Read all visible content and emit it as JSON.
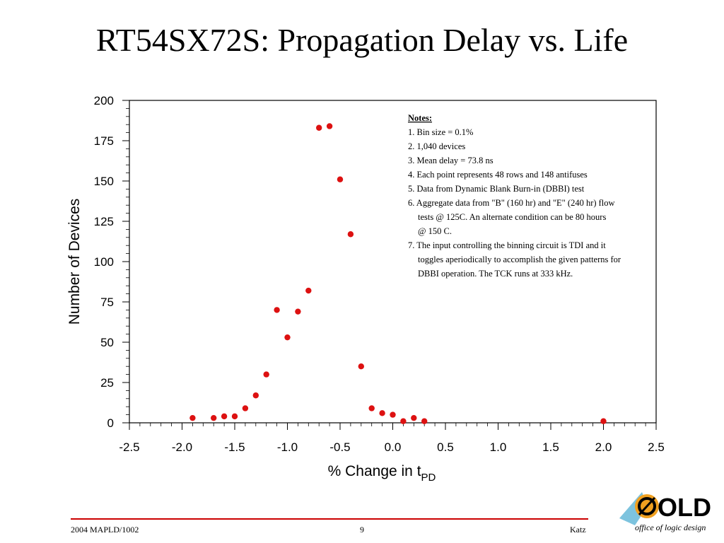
{
  "slide": {
    "title": "RT54SX72S: Propagation Delay vs. Life"
  },
  "chart_data": {
    "type": "scatter",
    "xlabel": "% Change in t",
    "xlabel_subscript": "PD",
    "ylabel": "Number of Devices",
    "xlim": [
      -2.5,
      2.5
    ],
    "ylim": [
      0,
      200
    ],
    "x_ticks": [
      "-2.5",
      "-2.0",
      "-1.5",
      "-1.0",
      "-0.5",
      "0.0",
      "0.5",
      "1.0",
      "1.5",
      "2.0",
      "2.5"
    ],
    "y_ticks": [
      "0",
      "25",
      "50",
      "75",
      "100",
      "125",
      "150",
      "175",
      "200"
    ],
    "grid": false,
    "marker_color": "#dd1111",
    "points": [
      {
        "x": -1.9,
        "y": 3
      },
      {
        "x": -1.7,
        "y": 3
      },
      {
        "x": -1.6,
        "y": 4
      },
      {
        "x": -1.5,
        "y": 4
      },
      {
        "x": -1.4,
        "y": 9
      },
      {
        "x": -1.3,
        "y": 17
      },
      {
        "x": -1.2,
        "y": 30
      },
      {
        "x": -1.1,
        "y": 70
      },
      {
        "x": -1.0,
        "y": 53
      },
      {
        "x": -0.9,
        "y": 69
      },
      {
        "x": -0.8,
        "y": 82
      },
      {
        "x": -0.7,
        "y": 183
      },
      {
        "x": -0.6,
        "y": 184
      },
      {
        "x": -0.5,
        "y": 151
      },
      {
        "x": -0.4,
        "y": 117
      },
      {
        "x": -0.3,
        "y": 35
      },
      {
        "x": -0.2,
        "y": 9
      },
      {
        "x": -0.1,
        "y": 6
      },
      {
        "x": 0.0,
        "y": 5
      },
      {
        "x": 0.1,
        "y": 1
      },
      {
        "x": 0.2,
        "y": 3
      },
      {
        "x": 0.3,
        "y": 1
      },
      {
        "x": 2.0,
        "y": 1
      }
    ],
    "notes": {
      "heading": "Notes:",
      "lines": [
        "1. Bin size = 0.1%",
        "2. 1,040 devices",
        "3. Mean delay = 73.8 ns",
        "4. Each point represents 48 rows and 148 antifuses",
        "5. Data from Dynamic Blank Burn-in (DBBI) test",
        "6. Aggregate data from \"B\" (160 hr) and \"E\" (240 hr) flow",
        "    tests @ 125C.  An alternate condition can be 80 hours",
        "    @ 150 C.",
        "7. The input controlling the binning circuit is TDI and it",
        "    toggles aperiodically to accomplish the given patterns for",
        "    DBBI operation.  The TCK runs at 333 kHz."
      ]
    }
  },
  "footer": {
    "left": "2004 MAPLD/1002",
    "center": "9",
    "right": "Katz"
  },
  "logo": {
    "text": "OLD",
    "subtitle": "office of logic design",
    "colors": {
      "sun": "#f0a020",
      "wing": "#66b8d8",
      "text": "#000000",
      "accent": "#d02020"
    }
  }
}
